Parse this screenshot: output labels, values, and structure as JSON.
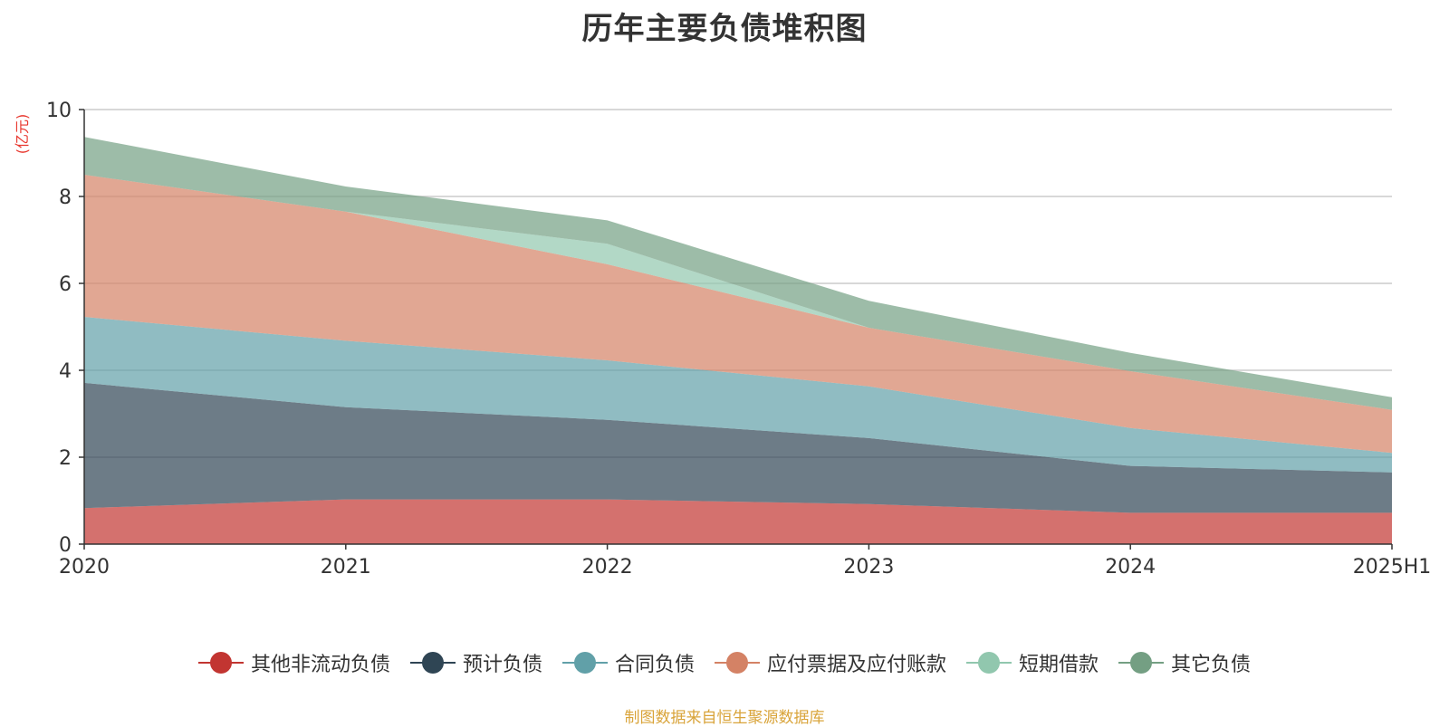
{
  "chart_data": {
    "type": "area",
    "stacked": true,
    "title": "历年主要负债堆积图",
    "unit_label": "(亿元)",
    "x": [
      "2020",
      "2021",
      "2022",
      "2023",
      "2024",
      "2025H1"
    ],
    "ylim": [
      0,
      10
    ],
    "yticks": [
      0,
      2,
      4,
      6,
      8,
      10
    ],
    "grid": true,
    "legend_position": "bottom",
    "series": [
      {
        "name": "其他非流动负债",
        "color": "#c23531",
        "values": [
          0.83,
          1.03,
          1.03,
          0.92,
          0.72,
          0.72
        ]
      },
      {
        "name": "预计负债",
        "color": "#2f4554",
        "values": [
          2.88,
          2.12,
          1.83,
          1.52,
          1.08,
          0.93
        ]
      },
      {
        "name": "合同负债",
        "color": "#61a0a8",
        "values": [
          1.52,
          1.53,
          1.37,
          1.19,
          0.87,
          0.45
        ]
      },
      {
        "name": "应付票据及应付账款",
        "color": "#d48265",
        "values": [
          3.27,
          2.97,
          2.21,
          1.35,
          1.31,
          0.99
        ]
      },
      {
        "name": "短期借款",
        "color": "#91c7ae",
        "values": [
          0.0,
          0.0,
          0.47,
          0.0,
          0.0,
          0.0
        ]
      },
      {
        "name": "其它负债",
        "color": "#749f83",
        "values": [
          0.87,
          0.58,
          0.54,
          0.62,
          0.42,
          0.29
        ]
      }
    ]
  },
  "source_note": "制图数据来自恒生聚源数据库"
}
